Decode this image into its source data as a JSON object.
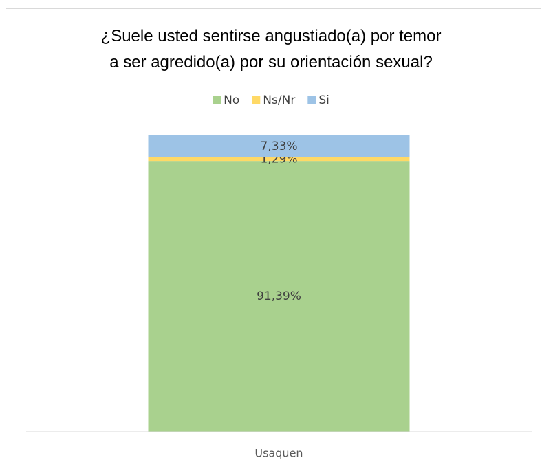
{
  "chart_data": {
    "type": "stacked_bar",
    "title": "¿Suele usted sentirse angustiado(a) por temor\na ser agredido(a) por su orientación sexual?",
    "categories": [
      "Usaquen"
    ],
    "series": [
      {
        "name": "No",
        "color": "#a9d18e",
        "values": [
          91.39
        ],
        "value_labels": [
          "91,39%"
        ]
      },
      {
        "name": "Ns/Nr",
        "color": "#ffd966",
        "values": [
          1.29
        ],
        "value_labels": [
          "1,29%"
        ]
      },
      {
        "name": "Si",
        "color": "#9dc3e6",
        "values": [
          7.33
        ],
        "value_labels": [
          "7,33%"
        ]
      }
    ],
    "ylim": [
      0,
      100
    ],
    "legend": "top"
  }
}
